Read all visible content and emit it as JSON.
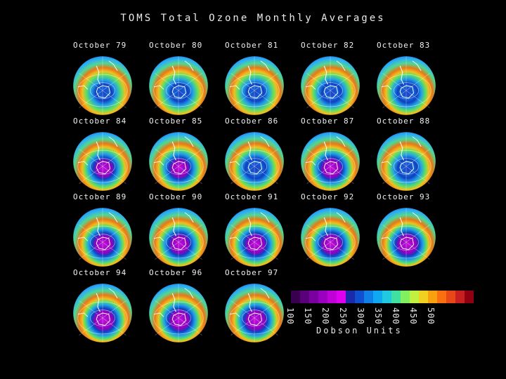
{
  "title": "TOMS Total Ozone Monthly Averages",
  "panels": [
    {
      "label": "October 79",
      "hole": 0.0
    },
    {
      "label": "October 80",
      "hole": 0.2
    },
    {
      "label": "October 81",
      "hole": 0.1
    },
    {
      "label": "October 82",
      "hole": 0.35
    },
    {
      "label": "October 83",
      "hole": 0.5
    },
    {
      "label": "October 84",
      "hole": 0.7
    },
    {
      "label": "October 85",
      "hole": 0.75
    },
    {
      "label": "October 86",
      "hole": 0.55
    },
    {
      "label": "October 87",
      "hole": 0.9
    },
    {
      "label": "October 88",
      "hole": 0.4
    },
    {
      "label": "October 89",
      "hole": 0.9
    },
    {
      "label": "October 90",
      "hole": 0.85
    },
    {
      "label": "October 91",
      "hole": 0.9
    },
    {
      "label": "October 92",
      "hole": 0.95
    },
    {
      "label": "October 93",
      "hole": 1.0
    },
    {
      "label": "October 94",
      "hole": 1.0
    },
    {
      "label": "October 96",
      "hole": 0.95
    },
    {
      "label": "October 97",
      "hole": 1.0
    }
  ],
  "colorbar": {
    "colors": [
      "#3a0050",
      "#5a007a",
      "#7a00a0",
      "#9a00c0",
      "#c000d8",
      "#e000f0",
      "#1a2aa8",
      "#1050d0",
      "#1080e8",
      "#10a8f0",
      "#20c8e0",
      "#40e0a0",
      "#80f060",
      "#c0f040",
      "#f0d020",
      "#f8a010",
      "#f87010",
      "#e84818",
      "#c82020",
      "#900010"
    ],
    "ticks": [
      "100",
      "150",
      "200",
      "250",
      "300",
      "350",
      "400",
      "450",
      "500"
    ],
    "units": "Dobson Units"
  }
}
